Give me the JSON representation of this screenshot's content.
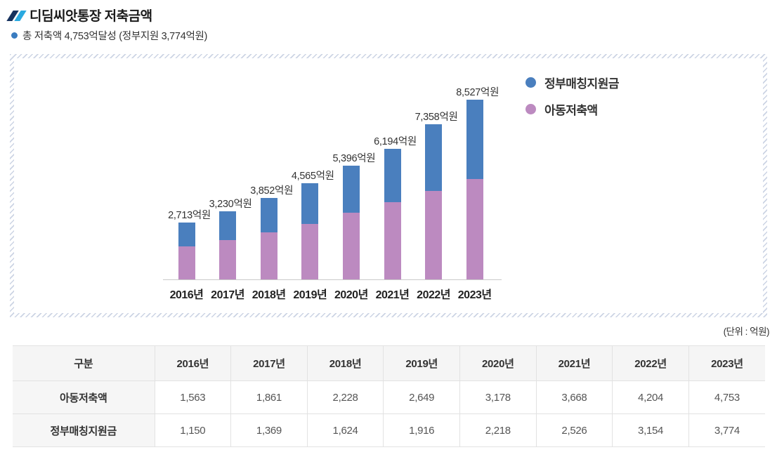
{
  "header": {
    "title": "디딤씨앗통장 저축금액",
    "subtitle": "총 저축액 4,753억달성 (정부지원 3,774억원)"
  },
  "unit_note": "(단위 : 억원)",
  "chart_data": {
    "type": "bar",
    "stacked": true,
    "grid": false,
    "legend_position": "top-right",
    "unit": "억원",
    "categories": [
      "2016년",
      "2017년",
      "2018년",
      "2019년",
      "2020년",
      "2021년",
      "2022년",
      "2023년"
    ],
    "series": [
      {
        "name": "정부매칭지원금",
        "color": "#4a7fbe",
        "position": "top",
        "values": [
          1150,
          1369,
          1624,
          1916,
          2218,
          2526,
          3154,
          3774
        ]
      },
      {
        "name": "아동저축액",
        "color": "#bc8ac0",
        "position": "bottom",
        "values": [
          1563,
          1861,
          2228,
          2649,
          3178,
          3668,
          4204,
          4753
        ]
      }
    ],
    "totals": [
      2713,
      3230,
      3852,
      4565,
      5396,
      6194,
      7358,
      8527
    ],
    "total_labels": [
      "2,713억원",
      "3,230억원",
      "3,852억원",
      "4,565억원",
      "5,396억원",
      "6,194억원",
      "7,358억원",
      "8,527억원"
    ]
  },
  "table": {
    "header": [
      "구분",
      "2016년",
      "2017년",
      "2018년",
      "2019년",
      "2020년",
      "2021년",
      "2022년",
      "2023년"
    ],
    "rows": [
      {
        "label": "아동저축액",
        "values": [
          "1,563",
          "1,861",
          "2,228",
          "2,649",
          "3,178",
          "3,668",
          "4,204",
          "4,753"
        ]
      },
      {
        "label": "정부매칭지원금",
        "values": [
          "1,150",
          "1,369",
          "1,624",
          "1,916",
          "2,218",
          "2,526",
          "3,154",
          "3,774"
        ]
      }
    ]
  },
  "colors": {
    "government_bar": "#4a7fbe",
    "child_bar": "#bc8ac0",
    "title_icon_dark": "#17325e",
    "title_icon_light": "#2aa9e0",
    "subtitle_bullet": "#3a7cc0",
    "hatch_border": "#ccd4e4",
    "axis_line": "#c9c9c9"
  }
}
